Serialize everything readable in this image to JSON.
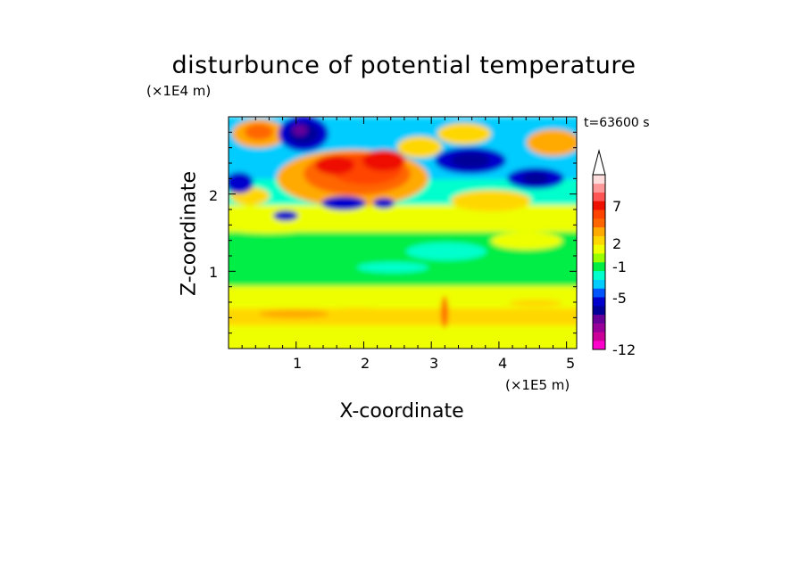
{
  "chart_data": {
    "type": "heatmap",
    "title": "disturbunce of potential temperature",
    "xlabel": "X-coordinate",
    "ylabel": "Z-coordinate",
    "x_scale_label": "(×1E5 m)",
    "y_scale_label": "(×1E4 m)",
    "time_label": "t=63600 s",
    "xlim": [
      0,
      5.15
    ],
    "ylim": [
      0,
      3.0
    ],
    "x_ticks": [
      "1",
      "2",
      "3",
      "4",
      "5"
    ],
    "y_ticks": [
      "1",
      "2"
    ],
    "colorbar": {
      "colors": [
        "#ff00cc",
        "#cc0099",
        "#990099",
        "#660099",
        "#000099",
        "#0000cc",
        "#0055ff",
        "#00ccff",
        "#00ffcc",
        "#00ee44",
        "#99ff00",
        "#eeff00",
        "#ffd700",
        "#ffaa00",
        "#ff6600",
        "#ff4400",
        "#ee1100",
        "#ff5555",
        "#ff9999",
        "#ffdddd"
      ],
      "labels": [
        "-12",
        "-5",
        "-1",
        "2",
        "7"
      ],
      "has_upper_extension": true
    }
  }
}
